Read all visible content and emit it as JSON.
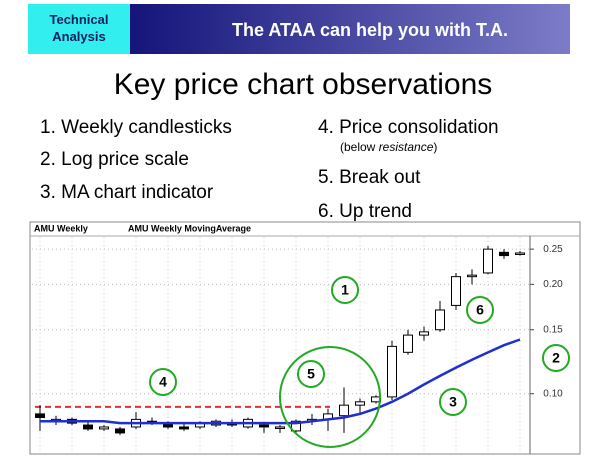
{
  "header": {
    "badge": "Technical Analysis",
    "banner": "The ATAA can help you with T.A."
  },
  "title": "Key price chart observations",
  "list_left": [
    "1. Weekly candlesticks",
    "2. Log price scale",
    "3. MA chart indicator"
  ],
  "list_right": [
    "4. Price consolidation",
    "5. Break out",
    "6. Up trend"
  ],
  "note_parts": [
    "(below ",
    "resistance",
    ")"
  ],
  "callouts": [
    "1",
    "2",
    "3",
    "4",
    "5",
    "6"
  ],
  "chart_data": {
    "type": "candlestick",
    "labels": [
      "AMU  Weekly",
      "AMU  Weekly  MovingAverage"
    ],
    "log_scale": true,
    "ylim": [
      0.07,
      0.27
    ],
    "yticks": [
      {
        "value": 0.1,
        "label": "0.10"
      },
      0.15,
      {
        "value": 0.2,
        "label": "0.20"
      },
      0.25
    ],
    "grid": true,
    "open": [
      0.088,
      0.085,
      0.085,
      0.082,
      0.08,
      0.08,
      0.081,
      0.084,
      0.083,
      0.081,
      0.081,
      0.082,
      0.083,
      0.081,
      0.082,
      0.081,
      0.079,
      0.084,
      0.085,
      0.087,
      0.093,
      0.095,
      0.098,
      0.13,
      0.145,
      0.15,
      0.175,
      0.21,
      0.215,
      0.245,
      0.243
    ],
    "high": [
      0.093,
      0.087,
      0.086,
      0.084,
      0.082,
      0.081,
      0.089,
      0.086,
      0.084,
      0.083,
      0.084,
      0.085,
      0.085,
      0.086,
      0.083,
      0.082,
      0.085,
      0.088,
      0.091,
      0.104,
      0.097,
      0.099,
      0.14,
      0.15,
      0.153,
      0.18,
      0.215,
      0.22,
      0.255,
      0.25,
      0.247
    ],
    "low": [
      0.079,
      0.082,
      0.082,
      0.079,
      0.079,
      0.077,
      0.08,
      0.082,
      0.08,
      0.079,
      0.08,
      0.081,
      0.081,
      0.08,
      0.078,
      0.078,
      0.078,
      0.082,
      0.079,
      0.078,
      0.088,
      0.094,
      0.096,
      0.128,
      0.14,
      0.148,
      0.17,
      0.2,
      0.213,
      0.235,
      0.24
    ],
    "close": [
      0.086,
      0.085,
      0.083,
      0.08,
      0.081,
      0.078,
      0.085,
      0.083,
      0.081,
      0.08,
      0.083,
      0.084,
      0.082,
      0.085,
      0.081,
      0.081,
      0.084,
      0.085,
      0.088,
      0.093,
      0.095,
      0.098,
      0.135,
      0.145,
      0.148,
      0.17,
      0.21,
      0.212,
      0.25,
      0.24,
      0.244
    ],
    "ma": {
      "name": "MovingAverage",
      "color": "#1f2fd0",
      "values": [
        0.084,
        0.084,
        0.084,
        0.084,
        0.084,
        0.083,
        0.083,
        0.083,
        0.083,
        0.083,
        0.083,
        0.083,
        0.083,
        0.083,
        0.083,
        0.083,
        0.083,
        0.084,
        0.085,
        0.086,
        0.088,
        0.091,
        0.095,
        0.1,
        0.106,
        0.112,
        0.118,
        0.124,
        0.13,
        0.136,
        0.141
      ]
    },
    "resistance": {
      "value": 0.092,
      "color": "#e03030"
    }
  }
}
